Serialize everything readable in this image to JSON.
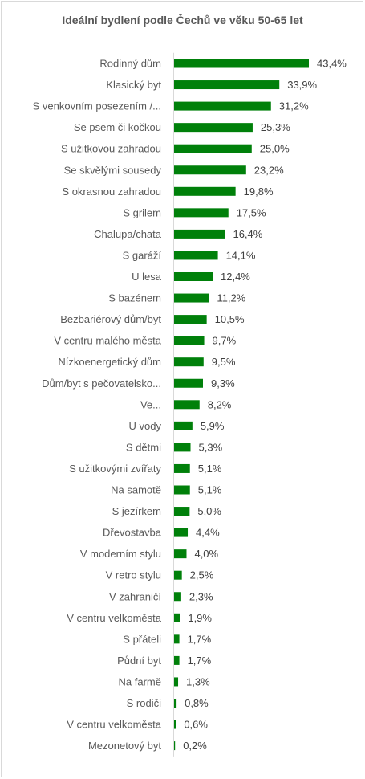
{
  "chart_data": {
    "type": "bar",
    "orientation": "horizontal",
    "title": "Ideální bydlení podle Čechů ve věku 50-65 let",
    "bar_color": "#00800a",
    "value_suffix": "%",
    "categories": [
      "Rodinný dům",
      "Klasický byt",
      "S venkovním posezením /...",
      "Se psem či kočkou",
      "S užitkovou zahradou",
      "Se skvělými sousedy",
      "S okrasnou zahradou",
      "S grilem",
      "Chalupa/chata",
      "S garáží",
      "U lesa",
      "S bazénem",
      "Bezbariérový dům/byt",
      "V centru malého města",
      "Nízkoenergetický dům",
      "Dům/byt s pečovatelsko...",
      "Ve...",
      "U vody",
      "S dětmi",
      "S užitkovými zvířaty",
      "Na samotě",
      "S jezírkem",
      "Dřevostavba",
      "V moderním stylu",
      "V retro stylu",
      "V zahraničí",
      "V centru velkoměsta",
      "S přáteli",
      "Půdní byt",
      "Na farmě",
      "S rodiči",
      "V centru velkoměsta",
      "Mezonetový byt"
    ],
    "values": [
      43.4,
      33.9,
      31.2,
      25.3,
      25.0,
      23.2,
      19.8,
      17.5,
      16.4,
      14.1,
      12.4,
      11.2,
      10.5,
      9.7,
      9.5,
      9.3,
      8.2,
      5.9,
      5.3,
      5.1,
      5.1,
      5.0,
      4.4,
      4.0,
      2.5,
      2.3,
      1.9,
      1.7,
      1.7,
      1.3,
      0.8,
      0.6,
      0.2
    ],
    "value_labels": [
      "43,4%",
      "33,9%",
      "31,2%",
      "25,3%",
      "25,0%",
      "23,2%",
      "19,8%",
      "17,5%",
      "16,4%",
      "14,1%",
      "12,4%",
      "11,2%",
      "10,5%",
      "9,7%",
      "9,5%",
      "9,3%",
      "8,2%",
      "5,9%",
      "5,3%",
      "5,1%",
      "5,1%",
      "5,0%",
      "4,4%",
      "4,0%",
      "2,5%",
      "2,3%",
      "1,9%",
      "1,7%",
      "1,7%",
      "1,3%",
      "0,8%",
      "0,6%",
      "0,2%"
    ]
  }
}
